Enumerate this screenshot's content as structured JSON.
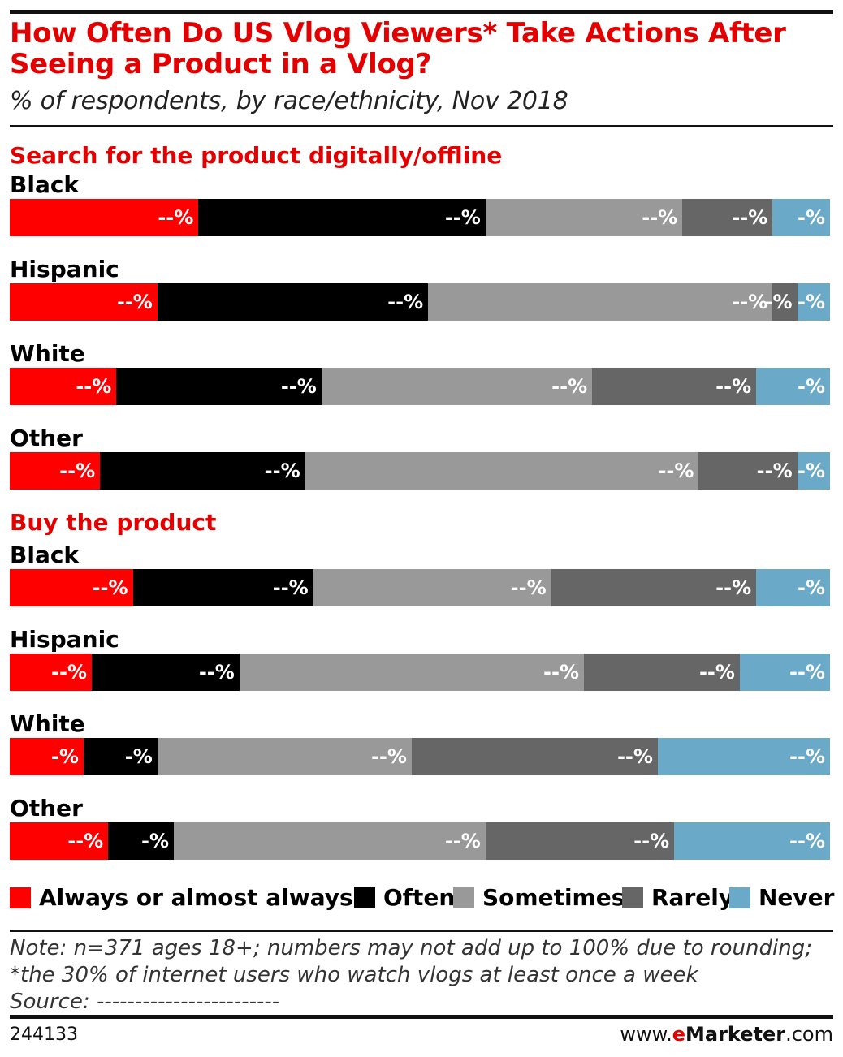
{
  "title": "How Often Do US Vlog Viewers* Take Actions After Seeing a Product in a Vlog?",
  "subtitle": "% of respondents, by race/ethnicity, Nov 2018",
  "colors": {
    "always": "#ff0000",
    "often": "#000000",
    "sometimes": "#999999",
    "rarely": "#666666",
    "never": "#6aa9c8",
    "title_red": "#e30000"
  },
  "legend": [
    {
      "key": "always",
      "label": "Always or almost always"
    },
    {
      "key": "often",
      "label": "Often"
    },
    {
      "key": "sometimes",
      "label": "Sometimes"
    },
    {
      "key": "rarely",
      "label": "Rarely"
    },
    {
      "key": "never",
      "label": "Never"
    }
  ],
  "chart_data": {
    "type": "bar",
    "orientation": "horizontal",
    "stacked": "100%",
    "series": [
      "Always or almost always",
      "Often",
      "Sometimes",
      "Rarely",
      "Never"
    ],
    "groups": [
      {
        "title": "Search for the product digitally/offline",
        "rows": [
          {
            "category": "Black",
            "values": [
              23,
              35,
              24,
              11,
              7
            ],
            "labels": [
              "--%",
              "--%",
              "--%",
              "--%",
              "-%"
            ]
          },
          {
            "category": "Hispanic",
            "values": [
              18,
              33,
              42,
              3,
              4
            ],
            "labels": [
              "--%",
              "--%",
              "--%",
              "-%",
              "-%"
            ]
          },
          {
            "category": "White",
            "values": [
              13,
              25,
              33,
              20,
              9
            ],
            "labels": [
              "--%",
              "--%",
              "--%",
              "--%",
              "-%"
            ]
          },
          {
            "category": "Other",
            "values": [
              11,
              25,
              48,
              12,
              4
            ],
            "labels": [
              "--%",
              "--%",
              "--%",
              "--%",
              "-%"
            ]
          }
        ]
      },
      {
        "title": "Buy the product",
        "rows": [
          {
            "category": "Black",
            "values": [
              15,
              22,
              29,
              25,
              9
            ],
            "labels": [
              "--%",
              "--%",
              "--%",
              "--%",
              "-%"
            ]
          },
          {
            "category": "Hispanic",
            "values": [
              10,
              18,
              42,
              19,
              11
            ],
            "labels": [
              "--%",
              "--%",
              "--%",
              "--%",
              "--%"
            ]
          },
          {
            "category": "White",
            "values": [
              9,
              9,
              31,
              30,
              21
            ],
            "labels": [
              "-%",
              "-%",
              "--%",
              "--%",
              "--%"
            ]
          },
          {
            "category": "Other",
            "values": [
              12,
              8,
              38,
              23,
              19
            ],
            "labels": [
              "--%",
              "-%",
              "--%",
              "--%",
              "--%"
            ]
          }
        ]
      }
    ]
  },
  "note_lines": [
    "Note: n=371 ages 18+; numbers may not add up to 100% due to rounding;",
    "*the 30% of internet users who watch vlogs at least once a week",
    "Source: ------------------------"
  ],
  "footer": {
    "id": "244133",
    "brand_prefix": "www.",
    "brand_e": "e",
    "brand_name": "Marketer",
    "brand_suffix": ".com"
  }
}
